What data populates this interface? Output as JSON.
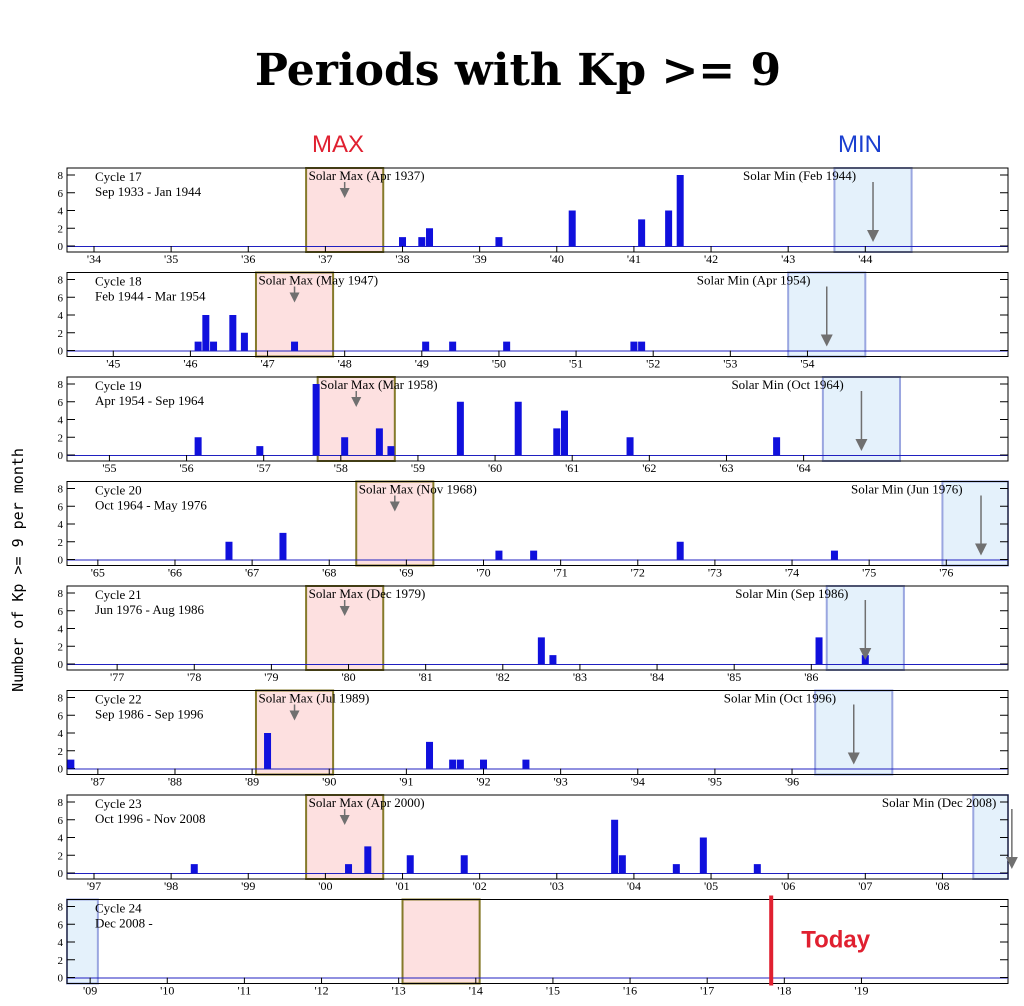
{
  "chart_data": {
    "type": "bar",
    "title": "Periods with Kp >= 9",
    "ylabel": "Number of Kp >= 9 per month",
    "ylim": [
      0,
      8
    ],
    "yticks": [
      0,
      2,
      4,
      6,
      8
    ],
    "max_label": "MAX",
    "min_label": "MIN",
    "today_label": "Today",
    "today_year": 2017.83,
    "colors": {
      "bar": "#1010dd",
      "max_box": "#fde0e0",
      "max_border": "#857a2a",
      "min_box": "#e4f1fb",
      "min_border": "#9aa6e0",
      "today": "#e02030",
      "arrow": "#707070"
    },
    "panels": [
      {
        "cycle": "Cycle 17",
        "range": "Sep 1933 - Jan 1944",
        "x0": 1933.65,
        "x1": 1945.85,
        "xticks": [
          "'34",
          "'35",
          "'36",
          "'37",
          "'38",
          "'39",
          "'40",
          "'41",
          "'42",
          "'43",
          "'44"
        ],
        "tick_start": 1934,
        "solar_max": "Solar Max (Apr 1937)",
        "solar_max_year": 1937.25,
        "max_box": [
          1936.75,
          1937.75
        ],
        "solar_min": "Solar Min (Feb 1944)",
        "solar_min_year": 1944.1,
        "min_box": [
          1943.6,
          1944.6
        ],
        "bars": [
          [
            1938.0,
            1
          ],
          [
            1938.25,
            1
          ],
          [
            1938.35,
            2
          ],
          [
            1939.25,
            1
          ],
          [
            1940.2,
            4
          ],
          [
            1941.1,
            3
          ],
          [
            1941.45,
            4
          ],
          [
            1941.6,
            8
          ]
        ]
      },
      {
        "cycle": "Cycle 18",
        "range": "Feb 1944 - Mar 1954",
        "x0": 1944.4,
        "x1": 1956.6,
        "xticks": [
          "'45",
          "'46",
          "'47",
          "'48",
          "'49",
          "'50",
          "'51",
          "'52",
          "'53",
          "'54"
        ],
        "tick_start": 1945,
        "solar_max": "Solar Max (May 1947)",
        "solar_max_year": 1947.35,
        "max_box": [
          1946.85,
          1947.85
        ],
        "solar_min": "Solar Min (Apr 1954)",
        "solar_min_year": 1954.25,
        "min_box": [
          1953.75,
          1954.75
        ],
        "bars": [
          [
            1946.1,
            1
          ],
          [
            1946.2,
            4
          ],
          [
            1946.3,
            1
          ],
          [
            1946.55,
            4
          ],
          [
            1946.7,
            2
          ],
          [
            1947.35,
            1
          ],
          [
            1949.05,
            1
          ],
          [
            1949.4,
            1
          ],
          [
            1950.1,
            1
          ],
          [
            1951.75,
            1
          ],
          [
            1951.85,
            1
          ]
        ]
      },
      {
        "cycle": "Cycle 19",
        "range": "Apr 1954 - Sep 1964",
        "x0": 1954.45,
        "x1": 1966.65,
        "xticks": [
          "'55",
          "'56",
          "'57",
          "'58",
          "'59",
          "'60",
          "'61",
          "'62",
          "'63",
          "'64"
        ],
        "tick_start": 1955,
        "solar_max": "Solar Max (Mar 1958)",
        "solar_max_year": 1958.2,
        "max_box": [
          1957.7,
          1958.7
        ],
        "solar_min": "Solar Min (Oct 1964)",
        "solar_min_year": 1964.75,
        "min_box": [
          1964.25,
          1965.25
        ],
        "bars": [
          [
            1956.15,
            2
          ],
          [
            1956.95,
            1
          ],
          [
            1957.68,
            8
          ],
          [
            1958.05,
            2
          ],
          [
            1958.5,
            3
          ],
          [
            1958.65,
            1
          ],
          [
            1959.55,
            6
          ],
          [
            1960.3,
            6
          ],
          [
            1960.8,
            3
          ],
          [
            1960.9,
            5
          ],
          [
            1961.75,
            2
          ],
          [
            1963.65,
            2
          ]
        ]
      },
      {
        "cycle": "Cycle 20",
        "range": "Oct 1964 - May 1976",
        "x0": 1964.6,
        "x1": 1976.8,
        "xticks": [
          "'65",
          "'66",
          "'67",
          "'68",
          "'69",
          "'70",
          "'71",
          "'72",
          "'73",
          "'74",
          "'75",
          "'76"
        ],
        "tick_start": 1965,
        "solar_max": "Solar Max (Nov 1968)",
        "solar_max_year": 1968.85,
        "max_box": [
          1968.35,
          1969.35
        ],
        "solar_min": "Solar Min (Jun 1976)",
        "solar_min_year": 1976.45,
        "min_box": [
          1975.95,
          1976.95
        ],
        "bars": [
          [
            1966.7,
            2
          ],
          [
            1967.4,
            3
          ],
          [
            1970.2,
            1
          ],
          [
            1970.65,
            1
          ],
          [
            1972.55,
            2
          ],
          [
            1974.55,
            1
          ]
        ]
      },
      {
        "cycle": "Cycle 21",
        "range": "Jun 1976 - Aug 1986",
        "x0": 1976.35,
        "x1": 1988.55,
        "xticks": [
          "'77",
          "'78",
          "'79",
          "'80",
          "'81",
          "'82",
          "'83",
          "'84",
          "'85",
          "'86"
        ],
        "tick_start": 1977,
        "solar_max": "Solar Max (Dec 1979)",
        "solar_max_year": 1979.95,
        "max_box": [
          1979.45,
          1980.45
        ],
        "solar_min": "Solar Min (Sep 1986)",
        "solar_min_year": 1986.7,
        "min_box": [
          1986.2,
          1987.2
        ],
        "bars": [
          [
            1982.5,
            3
          ],
          [
            1982.65,
            1
          ],
          [
            1986.1,
            3
          ],
          [
            1986.7,
            1
          ]
        ]
      },
      {
        "cycle": "Cycle 22",
        "range": "Sep 1986 - Sep 1996",
        "x0": 1986.6,
        "x1": 1998.8,
        "xticks": [
          "'87",
          "'88",
          "'89",
          "'90",
          "'91",
          "'92",
          "'93",
          "'94",
          "'95",
          "'96"
        ],
        "tick_start": 1987,
        "solar_max": "Solar Max (Jul 1989)",
        "solar_max_year": 1989.55,
        "max_box": [
          1989.05,
          1990.05
        ],
        "solar_min": "Solar Min (Oct 1996)",
        "solar_min_year": 1996.8,
        "min_box": [
          1996.3,
          1997.3
        ],
        "bars": [
          [
            1986.65,
            1
          ],
          [
            1989.2,
            4
          ],
          [
            1991.3,
            3
          ],
          [
            1991.6,
            1
          ],
          [
            1991.7,
            1
          ],
          [
            1992.0,
            1
          ],
          [
            1992.55,
            1
          ]
        ]
      },
      {
        "cycle": "Cycle 23",
        "range": "Oct 1996 - Nov 2008",
        "x0": 1996.65,
        "x1": 2008.85,
        "xticks": [
          "'97",
          "'98",
          "'99",
          "'00",
          "'01",
          "'02",
          "'03",
          "'04",
          "'05",
          "'06",
          "'07",
          "'08"
        ],
        "tick_start": 1997,
        "solar_max": "Solar Max (Apr 2000)",
        "solar_max_year": 2000.25,
        "max_box": [
          1999.75,
          2000.75
        ],
        "solar_min": "Solar Min (Dec 2008)",
        "solar_min_year": 2008.9,
        "min_box": [
          2008.4,
          2009.4
        ],
        "bars": [
          [
            1998.3,
            1
          ],
          [
            2000.3,
            1
          ],
          [
            2000.55,
            3
          ],
          [
            2001.1,
            2
          ],
          [
            2001.8,
            2
          ],
          [
            2003.75,
            6
          ],
          [
            2003.85,
            2
          ],
          [
            2004.55,
            1
          ],
          [
            2004.9,
            4
          ],
          [
            2005.6,
            1
          ]
        ]
      },
      {
        "cycle": "Cycle 24",
        "range": "Dec 2008 -",
        "x0": 2008.7,
        "x1": 2020.9,
        "xticks": [
          "'09",
          "'10",
          "'11",
          "'12",
          "'13",
          "'14",
          "'15",
          "'16",
          "'17",
          "'18",
          "'19"
        ],
        "tick_start": 2009,
        "solar_max": "",
        "solar_max_year": null,
        "max_box": [
          2013.05,
          2014.05
        ],
        "solar_min": "",
        "solar_min_year": null,
        "min_box": [
          2008.7,
          2009.1
        ],
        "bars": []
      }
    ]
  }
}
